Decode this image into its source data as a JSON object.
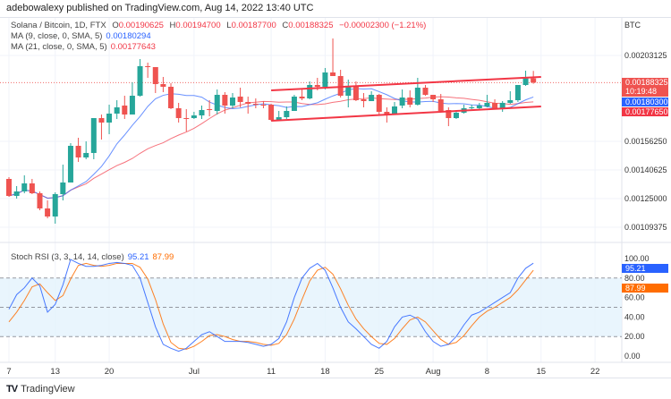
{
  "header": {
    "published": "adebowalexy published on TradingView.com, Aug 14, 2022 13:40 UTC"
  },
  "legend": {
    "symbol": "Solana / Bitcoin, 1D, FTX",
    "o_label": "O",
    "o": "0.00190625",
    "h_label": "H",
    "h": "0.00194700",
    "l_label": "L",
    "l": "0.00187700",
    "c_label": "C",
    "c": "0.00188325",
    "change": "−0.00002300 (−1.21%)",
    "ma9_label": "MA (9, close, 0, SMA, 5)",
    "ma9": "0.00180294",
    "ma21_label": "MA (21, close, 0, SMA, 5)",
    "ma21": "0.00177643",
    "stoch_label": "Stoch RSI (3, 3, 14, 14, close)",
    "stoch_k": "95.21",
    "stoch_d": "87.99"
  },
  "price_axis": {
    "currency": "BTC",
    "ticks": [
      "0.00203125",
      "0.00156250",
      "0.00140625",
      "0.00125000",
      "0.00109375"
    ],
    "last_price": "0.00188325",
    "countdown": "10:19:48",
    "ma9_tag": "0.00180300",
    "ma21_tag": "0.00177650"
  },
  "rsi_axis": {
    "ticks": [
      "100.00",
      "80.00",
      "60.00",
      "40.00",
      "20.00",
      "0.00"
    ]
  },
  "time_axis": {
    "ticks": [
      "7",
      "13",
      "20",
      "Jul",
      "11",
      "18",
      "25",
      "Aug",
      "8",
      "15",
      "22"
    ]
  },
  "footer": {
    "brand": "TradingView"
  },
  "colors": {
    "up": "#26a69a",
    "down": "#ef5350",
    "ma9": "#2962ff",
    "ma21": "#f23645",
    "stoch_k": "#2962ff",
    "stoch_d": "#ff6d00",
    "band": "#e3f2fd",
    "trendline": "#f23645"
  },
  "chart_data": {
    "type": "candlestick",
    "start_date": "2022-06-07",
    "tick_dates": [
      "2022-06-07",
      "2022-06-13",
      "2022-06-20",
      "2022-07-01",
      "2022-07-11",
      "2022-07-18",
      "2022-07-25",
      "2022-08-01",
      "2022-08-08",
      "2022-08-15",
      "2022-08-22"
    ],
    "price_ticks": [
      0.00203125,
      0.0015625,
      0.00140625,
      0.00125,
      0.00109375
    ],
    "ohlc": [
      [
        0.0013574,
        0.0013672,
        0.0012598,
        0.0012647
      ],
      [
        0.0012647,
        0.0013184,
        0.00125,
        0.0012891
      ],
      [
        0.0012891,
        0.001377,
        0.0012793,
        0.001333
      ],
      [
        0.001333,
        0.0013574,
        0.0012744,
        0.0012793
      ],
      [
        0.0012793,
        0.0012891,
        0.0011865,
        0.0011963
      ],
      [
        0.0011963,
        0.0012402,
        0.0011426,
        0.0011523
      ],
      [
        0.0011523,
        0.0012842,
        0.0011133,
        0.0012744
      ],
      [
        0.0012744,
        0.0014356,
        0.0012402,
        0.0013379
      ],
      [
        0.0013379,
        0.0015527,
        0.0013379,
        0.0015381
      ],
      [
        0.0015381,
        0.0015821,
        0.0014502,
        0.0014746
      ],
      [
        0.0014746,
        0.0015625,
        0.0014648,
        0.0014991
      ],
      [
        0.0014991,
        0.0016895,
        0.0014648,
        0.0016895
      ],
      [
        0.0016895,
        0.001709,
        0.0015723,
        0.0016651
      ],
      [
        0.0016651,
        0.0017627,
        0.0016016,
        0.0017139
      ],
      [
        0.0017139,
        0.0017871,
        0.0016846,
        0.0017481
      ],
      [
        0.0017578,
        0.0018115,
        0.0016846,
        0.001709
      ],
      [
        0.001709,
        0.0018848,
        0.001709,
        0.0018115
      ],
      [
        0.0018115,
        0.0020117,
        0.0018067,
        0.0019727
      ],
      [
        0.0019727,
        0.0019922,
        0.0019092,
        0.0019678
      ],
      [
        0.0019678,
        0.0019678,
        0.0018262,
        0.001875
      ],
      [
        0.001875,
        0.0019141,
        0.0018311,
        0.0018604
      ],
      [
        0.0018604,
        0.0018799,
        0.0017383,
        0.0017432
      ],
      [
        0.0017432,
        0.0017725,
        0.0016651,
        0.0016895
      ],
      [
        0.0016895,
        0.0017383,
        0.0016163,
        0.001688
      ],
      [
        0.0016895,
        0.0017236,
        0.0016846,
        0.0017041
      ],
      [
        0.0017041,
        0.0017578,
        0.0016846,
        0.0017334
      ],
      [
        0.0017383,
        0.0017871,
        0.0016992,
        0.0017334
      ],
      [
        0.0017285,
        0.0018457,
        0.001709,
        0.0018164
      ],
      [
        0.0018164,
        0.0018311,
        0.0017139,
        0.0017578
      ],
      [
        0.0017578,
        0.0018262,
        0.0017432,
        0.0018018
      ],
      [
        0.0018067,
        0.0018555,
        0.0017481,
        0.0017774
      ],
      [
        0.0017774,
        0.0018067,
        0.0017139,
        0.0017676
      ],
      [
        0.0017676,
        0.0017969,
        0.0017432,
        0.0017627
      ],
      [
        0.0017627,
        0.0017822,
        0.0017432,
        0.0017578
      ],
      [
        0.0017627,
        0.0017676,
        0.0016748,
        0.0016797
      ],
      [
        0.0016797,
        0.0017285,
        0.0016748,
        0.0016944
      ],
      [
        0.0016944,
        0.0017529,
        0.0016846,
        0.0017285
      ],
      [
        0.0017285,
        0.0018164,
        0.0017285,
        0.0018067
      ],
      [
        0.0018067,
        0.0018457,
        0.0017871,
        0.0017969
      ],
      [
        0.0017969,
        0.0018897,
        0.001792,
        0.0018701
      ],
      [
        0.0018701,
        0.0019092,
        0.0018408,
        0.0018604
      ],
      [
        0.0018604,
        0.0019629,
        0.0018457,
        0.0019385
      ],
      [
        0.0019385,
        0.002124,
        0.001919,
        0.001919
      ],
      [
        0.001919,
        0.0019531,
        0.0018018,
        0.0018115
      ],
      [
        0.0018115,
        0.0018994,
        0.0017481,
        0.0018653
      ],
      [
        0.0018653,
        0.0018897,
        0.0017822,
        0.0017871
      ],
      [
        0.001792,
        0.0018262,
        0.0017481,
        0.0017822
      ],
      [
        0.0017822,
        0.001836,
        0.0017822,
        0.0018164
      ],
      [
        0.0018164,
        0.0018213,
        0.001709,
        0.0017236
      ],
      [
        0.0017236,
        0.0017481,
        0.0016651,
        0.001709
      ],
      [
        0.001709,
        0.0017774,
        0.001709,
        0.0017529
      ],
      [
        0.0017578,
        0.0018457,
        0.0017432,
        0.0018018
      ],
      [
        0.0018018,
        0.0018408,
        0.0017481,
        0.0017627
      ],
      [
        0.0017627,
        0.0019092,
        0.0017578,
        0.0018555
      ],
      [
        0.0018555,
        0.0018701,
        0.0018115,
        0.0018164
      ],
      [
        0.0018164,
        0.0018164,
        0.0017774,
        0.001792
      ],
      [
        0.001792,
        0.0018213,
        0.0017236,
        0.0017285
      ],
      [
        0.0017334,
        0.0017481,
        0.0016455,
        0.0016895
      ],
      [
        0.0016895,
        0.0017285,
        0.0016846,
        0.0017188
      ],
      [
        0.0017188,
        0.0017627,
        0.0017139,
        0.0017432
      ],
      [
        0.0017432,
        0.0017627,
        0.0017383,
        0.0017481
      ],
      [
        0.0017432,
        0.0017725,
        0.0017334,
        0.0017578
      ],
      [
        0.0017529,
        0.0018164,
        0.0017481,
        0.0017725
      ],
      [
        0.0017725,
        0.001792,
        0.0017383,
        0.0017432
      ],
      [
        0.0017432,
        0.0017822,
        0.0017236,
        0.0017725
      ],
      [
        0.0017725,
        0.001836,
        0.0017676,
        0.0017871
      ],
      [
        0.0017871,
        0.0018701,
        0.0017774,
        0.0018701
      ],
      [
        0.0018701,
        0.0019483,
        0.0018653,
        0.0019063
      ],
      [
        0.00190625,
        0.001947,
        0.001877,
        0.00188325
      ]
    ],
    "trendlines": [
      {
        "from": [
          "2022-07-11",
          0.0018408
        ],
        "to": [
          "2022-08-15",
          0.0019141
        ]
      },
      {
        "from": [
          "2022-07-11",
          0.0016748
        ],
        "to": [
          "2022-08-15",
          0.0017529
        ]
      }
    ],
    "stoch_k": [
      48,
      63,
      70,
      80,
      72,
      45,
      53,
      73,
      99,
      95,
      92,
      92,
      93,
      95,
      96,
      95,
      93,
      80,
      55,
      30,
      12,
      8,
      5,
      8,
      15,
      22,
      25,
      20,
      15,
      15,
      15,
      14,
      12,
      10,
      12,
      18,
      35,
      60,
      80,
      90,
      95,
      88,
      70,
      50,
      35,
      28,
      20,
      12,
      8,
      15,
      30,
      40,
      42,
      38,
      25,
      15,
      10,
      12,
      20,
      32,
      42,
      45,
      50,
      55,
      60,
      65,
      80,
      90,
      95.21
    ],
    "stoch_d": [
      35,
      45,
      57,
      71,
      74,
      65,
      57,
      62,
      79,
      93,
      95,
      93,
      92,
      93,
      95,
      95,
      95,
      91,
      79,
      58,
      33,
      14,
      8,
      7,
      10,
      15,
      21,
      22,
      20,
      17,
      15,
      15,
      14,
      12,
      11,
      13,
      22,
      38,
      58,
      77,
      88,
      91,
      84,
      69,
      52,
      38,
      28,
      20,
      13,
      12,
      18,
      28,
      37,
      40,
      35,
      26,
      17,
      12,
      14,
      21,
      31,
      40,
      46,
      50,
      55,
      60,
      68,
      78,
      87.99
    ],
    "stoch_bands": [
      80,
      50,
      20
    ],
    "rsi_range": [
      0,
      100
    ]
  }
}
